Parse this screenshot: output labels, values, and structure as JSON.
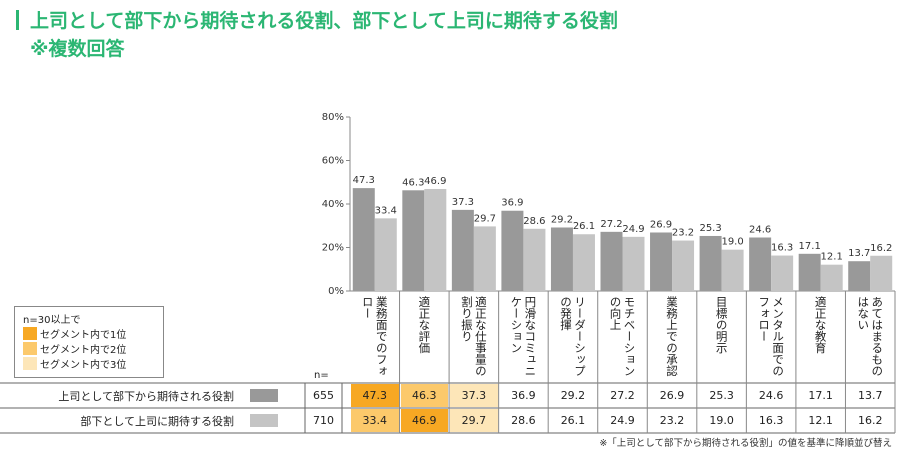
{
  "header": {
    "title": "上司として部下から期待される役割、部下として上司に期待する役割",
    "subtitle": "※複数回答"
  },
  "chart_data": {
    "type": "bar",
    "categories": [
      "業務面でのフォロー",
      "適正な評価",
      "適正な仕事量の割り振り",
      "円滑なコミュニケーション",
      "リーダーシップの発揮",
      "モチベーションの向上",
      "業務上での承認",
      "目標の明示",
      "メンタル面でのフォロー",
      "適正な教育",
      "あてはまるものはない"
    ],
    "series": [
      {
        "name": "上司として部下から期待される役割",
        "color": "#999999",
        "n": 655,
        "values": [
          47.3,
          46.3,
          37.3,
          36.9,
          29.2,
          27.2,
          26.9,
          25.3,
          24.6,
          17.1,
          13.7
        ],
        "value_labels": [
          "47.3",
          "46.3",
          "37.3",
          "36.9",
          "29.2",
          "27.2",
          "26.9",
          "25.3",
          "24.6",
          "17.1",
          "13.7"
        ],
        "highlight": [
          0,
          1,
          2,
          null,
          null,
          null,
          null,
          null,
          null,
          null,
          null
        ]
      },
      {
        "name": "部下として上司に期待する役割",
        "color": "#c4c4c4",
        "n": 710,
        "values": [
          33.4,
          46.9,
          29.7,
          28.6,
          26.1,
          24.9,
          23.2,
          19.0,
          16.3,
          12.1,
          16.2
        ],
        "value_labels": [
          "33.4",
          "46.9",
          "29.7",
          "28.6",
          "26.1",
          "24.9",
          "23.2",
          "19.0",
          "16.3",
          "12.1",
          "16.2"
        ],
        "highlight": [
          1,
          0,
          2,
          null,
          null,
          null,
          null,
          null,
          null,
          null,
          null
        ]
      }
    ],
    "ylim": [
      0,
      80
    ],
    "yticks": [
      {
        "value": 0,
        "label": "0%"
      },
      {
        "value": 20,
        "label": "20%"
      },
      {
        "value": 40,
        "label": "40%"
      },
      {
        "value": 60,
        "label": "60%"
      },
      {
        "value": 80,
        "label": "80%"
      }
    ],
    "n_label": "n="
  },
  "legend_box": {
    "title": "n=30以上で",
    "items": [
      {
        "label": "セグメント内で1位",
        "color": "#f7a823"
      },
      {
        "label": "セグメント内で2位",
        "color": "#fcc96b"
      },
      {
        "label": "セグメント内で3位",
        "color": "#fde6b8"
      }
    ]
  },
  "footnote": "※「上司として部下から期待される役割」の値を基準に降順並び替え"
}
